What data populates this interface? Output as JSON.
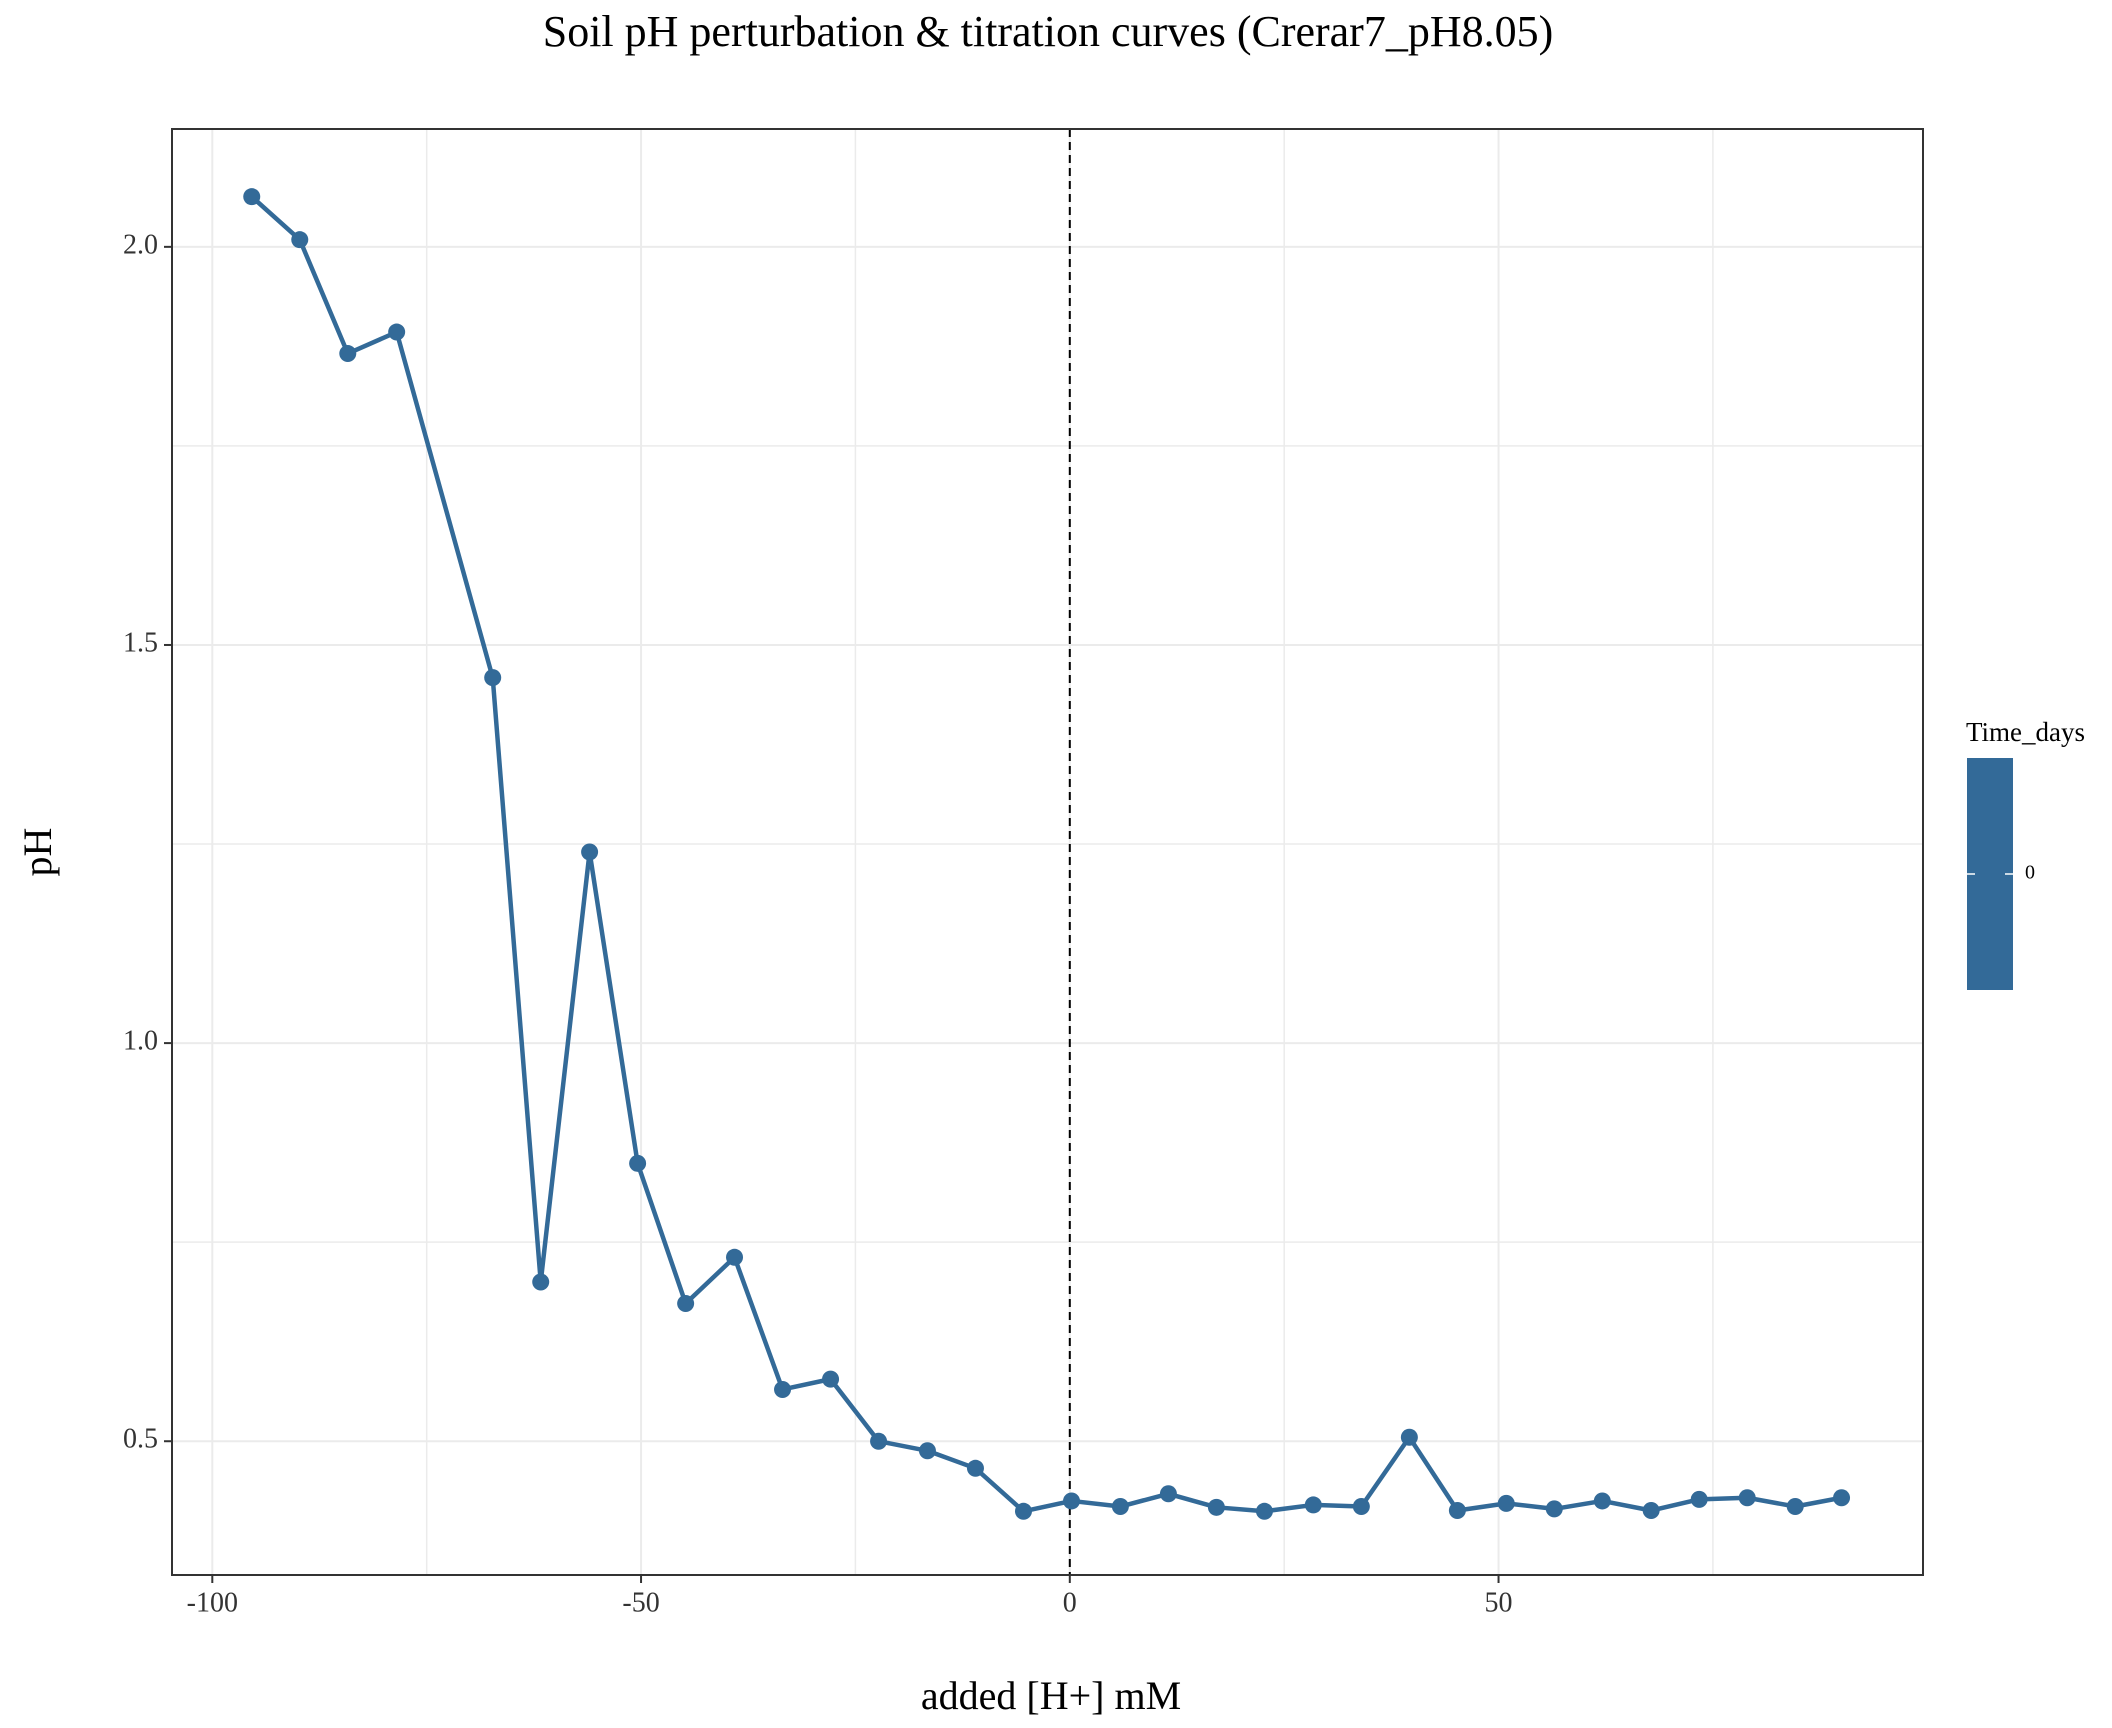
{
  "chart_data": {
    "type": "line",
    "title": "Soil pH perturbation & titration curves (Crerar7_pH8.05)",
    "x_label": "added [H+] mM",
    "y_label": "pH",
    "x": [
      -95.4,
      -89.8,
      -84.2,
      -78.5,
      -67.3,
      -61.7,
      -56.0,
      -50.4,
      -44.8,
      -39.1,
      -33.5,
      -27.9,
      -22.3,
      -16.6,
      -11.0,
      -5.4,
      0.2,
      5.9,
      11.5,
      17.1,
      22.7,
      28.4,
      34.0,
      39.6,
      45.2,
      50.9,
      56.5,
      62.1,
      67.8,
      73.4,
      79.0,
      84.6,
      90.0
    ],
    "series": [
      {
        "name": "0",
        "color": "#336a98",
        "values": [
          2.063,
          2.009,
          1.866,
          1.893,
          1.459,
          0.7,
          1.24,
          0.849,
          0.673,
          0.731,
          0.565,
          0.578,
          0.5,
          0.488,
          0.466,
          0.412,
          0.425,
          0.418,
          0.434,
          0.417,
          0.412,
          0.42,
          0.418,
          0.505,
          0.413,
          0.422,
          0.415,
          0.425,
          0.413,
          0.427,
          0.429,
          0.418,
          0.429
        ]
      }
    ],
    "xlim": [
      -104.7,
      99.5
    ],
    "ylim": [
      0.332,
      2.148
    ],
    "xticks": [
      -100,
      -50,
      0,
      50
    ],
    "yticks": [
      {
        "value": 0.5,
        "label": "0.5"
      },
      {
        "value": 1.0,
        "label": "1.0"
      },
      {
        "value": 1.5,
        "label": "1.5"
      },
      {
        "value": 2.0,
        "label": "2.0"
      }
    ],
    "x_minor_grid": [
      -75,
      -25,
      25,
      75
    ],
    "y_minor_grid": [
      0.75,
      1.25,
      1.75
    ],
    "grid": true,
    "vline": 0,
    "legend": {
      "title": "Time_days",
      "ticks": [
        0
      ]
    }
  }
}
